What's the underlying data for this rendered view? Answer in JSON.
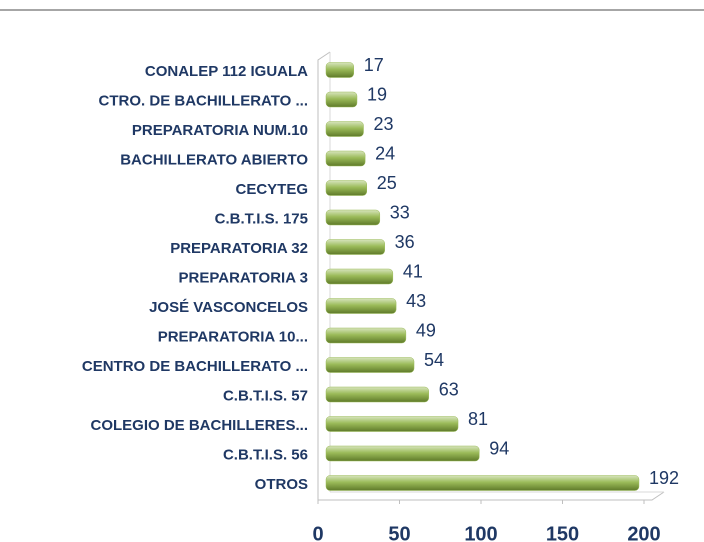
{
  "chart_data": {
    "type": "bar",
    "categories": [
      "CONALEP 112 IGUALA",
      "CTRO. DE BACHILLERATO ...",
      "PREPARATORIA  NUM.10",
      "BACHILLERATO  ABIERTO",
      "CECYTEG",
      "C.B.T.I.S. 175",
      "PREPARATORIA  32",
      "PREPARATORIA  3",
      "JOSÉ VASCONCELOS",
      "PREPARATORIA  10...",
      "CENTRO DE BACHILLERATO ...",
      "C.B.T.I.S. 57",
      "COLEGIO DE BACHILLERES...",
      "C.B.T.I.S. 56",
      "OTROS"
    ],
    "values": [
      17,
      19,
      23,
      24,
      25,
      33,
      36,
      41,
      43,
      49,
      54,
      63,
      81,
      94,
      192
    ],
    "color": "#9bbb59",
    "xlim": [
      0,
      200
    ],
    "xticks": [
      0,
      50,
      100,
      150,
      200
    ],
    "grid": false
  }
}
